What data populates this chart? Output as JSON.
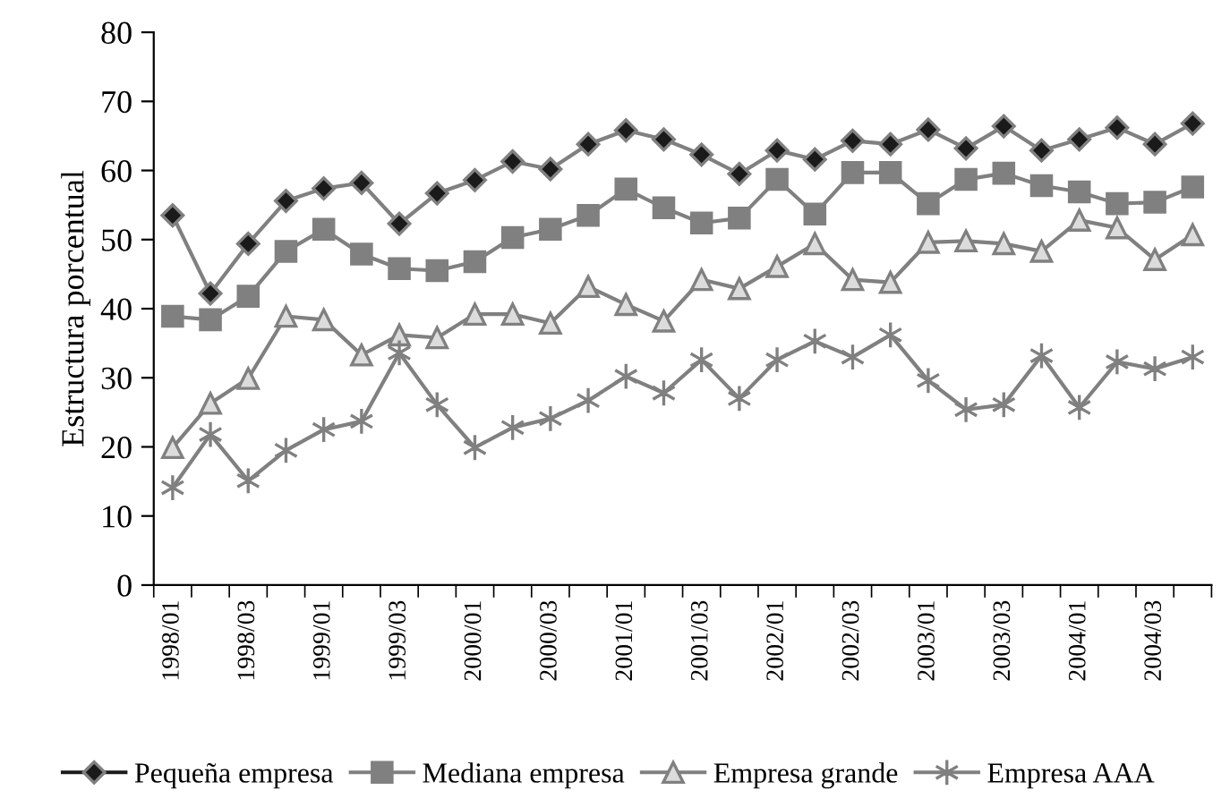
{
  "chart_data": {
    "type": "line",
    "ylabel": "Estructura porcentual",
    "categories": [
      "1998/01",
      null,
      "1998/03",
      null,
      "1999/01",
      null,
      "1999/03",
      null,
      "2000/01",
      null,
      "2000/03",
      null,
      "2001/01",
      null,
      "2001/03",
      null,
      "2002/01",
      null,
      "2002/03",
      null,
      "2003/01",
      null,
      "2003/03",
      null,
      "2004/01",
      null,
      "2004/03",
      null
    ],
    "series": [
      {
        "name": "Pequeña empresa",
        "color": "#1a1a1a",
        "marker": "diamond",
        "values": [
          53.5,
          42.2,
          49.4,
          55.6,
          57.4,
          58.2,
          52.3,
          56.7,
          58.6,
          61.3,
          60.2,
          63.8,
          65.8,
          64.5,
          62.3,
          59.5,
          62.9,
          61.6,
          64.3,
          63.8,
          65.9,
          63.2,
          66.4,
          62.9,
          64.5,
          66.2,
          63.8,
          66.8
        ]
      },
      {
        "name": "Mediana empresa",
        "color": "#808080",
        "marker": "square",
        "values": [
          38.9,
          38.4,
          41.8,
          48.3,
          51.5,
          47.9,
          45.8,
          45.5,
          46.8,
          50.3,
          51.5,
          53.5,
          57.3,
          54.6,
          52.4,
          53.1,
          58.7,
          53.7,
          59.7,
          59.7,
          55.2,
          58.7,
          59.6,
          57.8,
          56.9,
          55.2,
          55.4,
          57.6
        ]
      },
      {
        "name": "Empresa grande",
        "color": "#dcdcdc",
        "marker": "triangle",
        "values": [
          19.9,
          26.3,
          29.9,
          38.9,
          38.4,
          33.3,
          36.2,
          35.8,
          39.2,
          39.2,
          37.9,
          43.2,
          40.6,
          38.2,
          44.2,
          42.9,
          46.1,
          49.4,
          44.2,
          43.8,
          49.6,
          49.8,
          49.4,
          48.3,
          52.8,
          51.7,
          47.1,
          50.7
        ]
      },
      {
        "name": "Empresa AAA",
        "color": "#808080",
        "marker": "cross",
        "values": [
          14.1,
          21.8,
          15.1,
          19.5,
          22.5,
          23.7,
          33.6,
          26.1,
          19.9,
          22.8,
          24.1,
          26.7,
          30.2,
          27.8,
          32.6,
          27.0,
          32.6,
          35.3,
          33.0,
          36.2,
          29.6,
          25.4,
          26.1,
          33.2,
          25.7,
          32.3,
          31.3,
          33.0
        ]
      }
    ],
    "ylim": [
      0,
      80
    ],
    "yticks": [
      0,
      10,
      20,
      30,
      40,
      50,
      60,
      70,
      80
    ],
    "legend": "bottom",
    "line_style": "solid"
  }
}
